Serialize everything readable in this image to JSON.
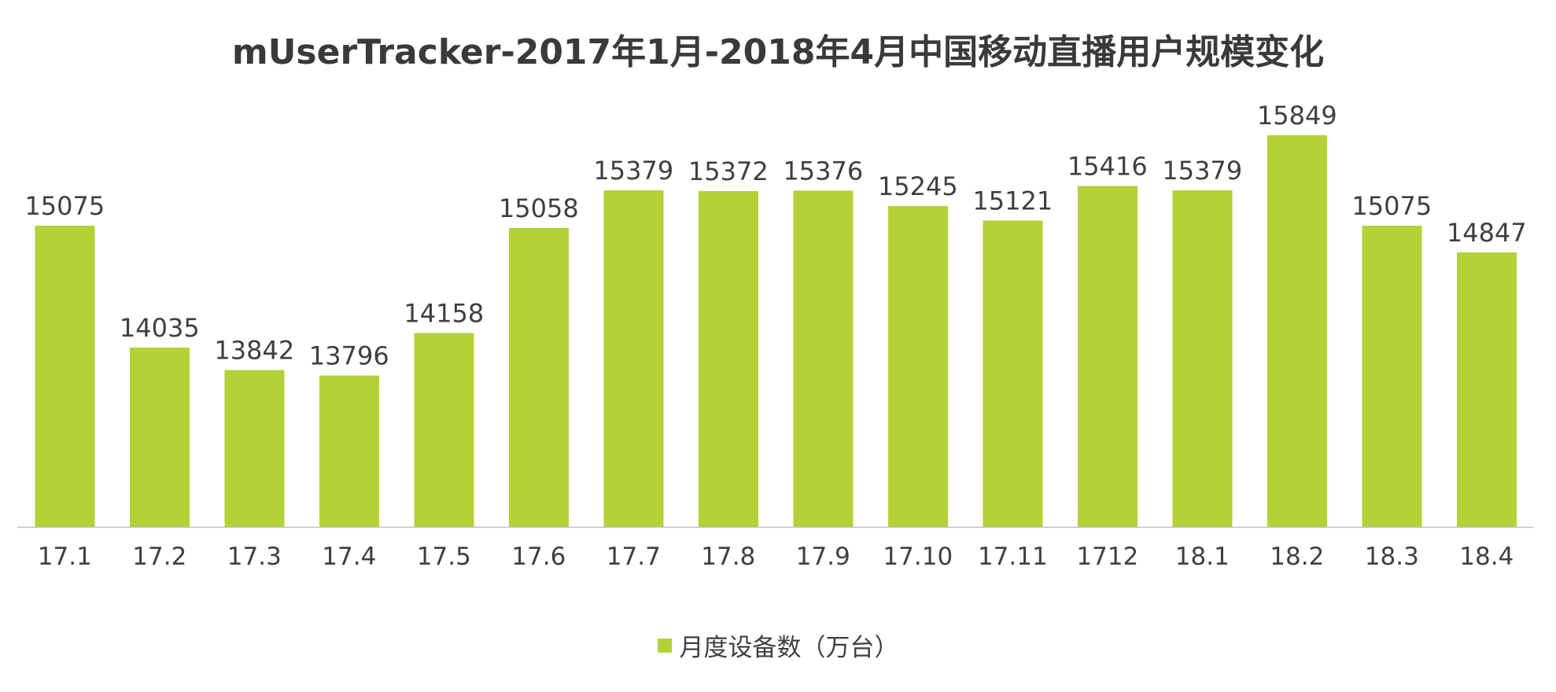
{
  "chart_data": {
    "type": "bar",
    "title": "mUserTracker-2017年1月-2018年4月中国移动直播用户规模变化",
    "categories": [
      "17.1",
      "17.2",
      "17.3",
      "17.4",
      "17.5",
      "17.6",
      "17.7",
      "17.8",
      "17.9",
      "17.10",
      "17.11",
      "1712",
      "18.1",
      "18.2",
      "18.3",
      "18.4"
    ],
    "series": [
      {
        "name": "月度设备数（万台）",
        "values": [
          15075,
          14035,
          13842,
          13796,
          14158,
          15058,
          15379,
          15372,
          15376,
          15245,
          15121,
          15416,
          15379,
          15849,
          15075,
          14847
        ],
        "color": "#b2d235"
      }
    ],
    "ylim": [
      12500,
      16200
    ],
    "grid": false,
    "legend": "bottom-center",
    "xlabel": "",
    "ylabel": ""
  },
  "colors": {
    "bar": "#b2d235",
    "axis": "#bfbfbf",
    "text": "#3f3f3f"
  }
}
